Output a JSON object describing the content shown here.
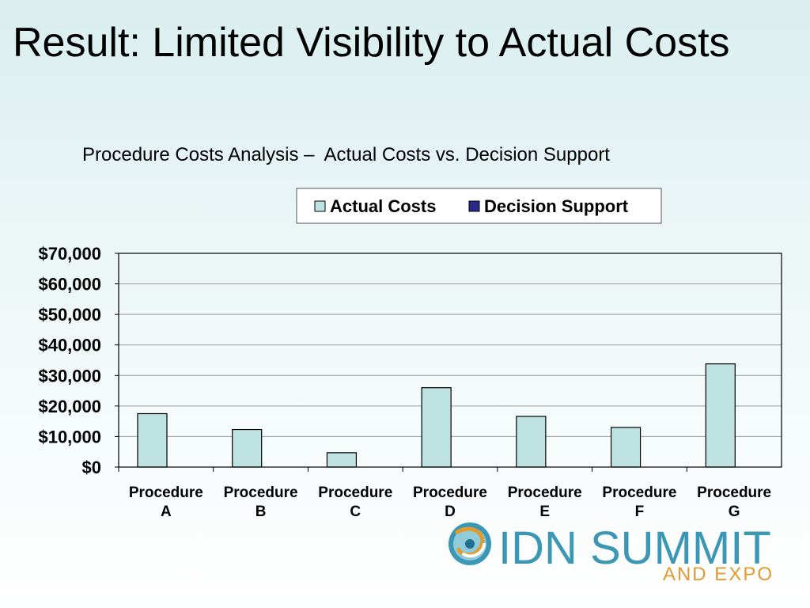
{
  "slide": {
    "title": "Result: Limited Visibility to Actual Costs"
  },
  "chart_data": {
    "type": "bar",
    "title": "Procedure Costs Analysis –  Actual Costs vs. Decision Support",
    "categories": [
      [
        "Procedure",
        "A"
      ],
      [
        "Procedure",
        "B"
      ],
      [
        "Procedure",
        "C"
      ],
      [
        "Procedure",
        "D"
      ],
      [
        "Procedure",
        "E"
      ],
      [
        "Procedure",
        "F"
      ],
      [
        "Procedure",
        "G"
      ]
    ],
    "series": [
      {
        "name": "Actual Costs",
        "color": "#bfe3e3",
        "values": [
          17500,
          12300,
          4700,
          26000,
          16600,
          13000,
          33800
        ]
      },
      {
        "name": "Decision Support",
        "color": "#2a2a8c",
        "values": [
          0,
          0,
          0,
          0,
          0,
          0,
          0
        ]
      }
    ],
    "ylim": [
      0,
      70000
    ],
    "yticks": [
      0,
      10000,
      20000,
      30000,
      40000,
      50000,
      60000,
      70000
    ],
    "ytick_labels": [
      "$0",
      "$10,000",
      "$20,000",
      "$30,000",
      "$40,000",
      "$50,000",
      "$60,000",
      "$70,000"
    ],
    "xlabel": "",
    "ylabel": "",
    "grid": true,
    "legend": "top"
  },
  "logo": {
    "line1": "IDN SUMMIT",
    "line2": "AND EXPO",
    "colors": {
      "primary": "#3b97b4",
      "secondary": "#e39a2e"
    }
  }
}
